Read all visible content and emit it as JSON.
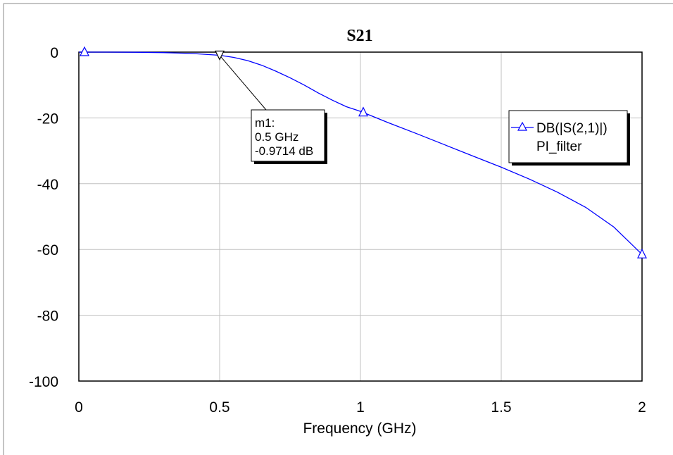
{
  "chart_data": {
    "type": "line",
    "title": "S21",
    "xlabel": "Frequency (GHz)",
    "ylabel": "",
    "xlim": [
      0,
      2
    ],
    "ylim": [
      -100,
      0
    ],
    "x_ticks": [
      "0",
      "0.5",
      "1",
      "1.5",
      "2"
    ],
    "y_ticks": [
      "0",
      "-20",
      "-40",
      "-60",
      "-80",
      "-100"
    ],
    "grid": true,
    "legend_position": "right",
    "series": [
      {
        "name": "DB(|S(2,1)|)",
        "sub_name": "PI_filter",
        "color": "#0000ff",
        "marker": "triangle-up",
        "x": [
          0,
          0.1,
          0.2,
          0.3,
          0.4,
          0.5,
          0.55,
          0.6,
          0.65,
          0.7,
          0.75,
          0.8,
          0.85,
          0.9,
          0.95,
          1.0,
          1.1,
          1.2,
          1.3,
          1.4,
          1.5,
          1.6,
          1.7,
          1.8,
          1.9,
          2.0
        ],
        "y": [
          0,
          0,
          -0.05,
          -0.15,
          -0.4,
          -0.97,
          -1.6,
          -2.6,
          -4.0,
          -5.8,
          -7.8,
          -10.0,
          -12.4,
          -14.6,
          -16.6,
          -18.0,
          -21.5,
          -24.8,
          -28.2,
          -31.6,
          -35.0,
          -38.6,
          -42.6,
          -47.2,
          -53.2,
          -61.5
        ],
        "marker_x": [
          0.02,
          1.01,
          2.0
        ]
      }
    ],
    "marker": {
      "label": "m1:",
      "freq_text": "0.5 GHz",
      "value_text": "-0.9714 dB",
      "x": 0.5,
      "y": -0.9714
    }
  }
}
